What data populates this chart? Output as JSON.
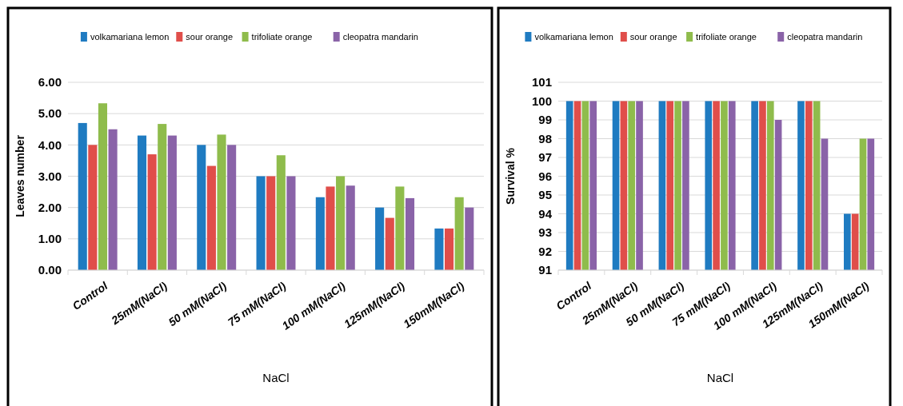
{
  "chart_data": [
    {
      "type": "bar",
      "xlabel": "NaCl",
      "ylabel": "Leaves number",
      "categories": [
        "Control",
        "25mM(NaCl)",
        "50 mM(NaCl)",
        "75 mM(NaCl)",
        "100 mM(NaCl)",
        "125mM(NaCl)",
        "150mM(NaCl)"
      ],
      "series": [
        {
          "name": "volkamariana lemon",
          "color": "#1f7bc1",
          "values": [
            4.7,
            4.3,
            4.0,
            3.0,
            2.33,
            2.0,
            1.33
          ]
        },
        {
          "name": "sour orange",
          "color": "#e04e4a",
          "values": [
            4.0,
            3.7,
            3.33,
            3.0,
            2.67,
            1.67,
            1.33
          ]
        },
        {
          "name": "trifoliate orange",
          "color": "#8fbc4c",
          "values": [
            5.33,
            4.67,
            4.33,
            3.67,
            3.0,
            2.67,
            2.33
          ]
        },
        {
          "name": "cleopatra mandarin",
          "color": "#8a63a8",
          "values": [
            4.5,
            4.3,
            4.0,
            3.0,
            2.7,
            2.3,
            2.0
          ]
        }
      ],
      "ylim": [
        0,
        6
      ],
      "yticks": [
        {
          "value": 0,
          "label": "0.00"
        },
        {
          "value": 1,
          "label": "1.00"
        },
        {
          "value": 2,
          "label": "2.00"
        },
        {
          "value": 3,
          "label": "3.00"
        },
        {
          "value": 4,
          "label": "4.00"
        },
        {
          "value": 5,
          "label": "5.00"
        },
        {
          "value": 6,
          "label": "6.00"
        }
      ],
      "grid": "y",
      "legend": "top"
    },
    {
      "type": "bar",
      "xlabel": "NaCl",
      "ylabel": "Survival %",
      "categories": [
        "Control",
        "25mM(NaCl)",
        "50 mM(NaCl)",
        "75 mM(NaCl)",
        "100 mM(NaCl)",
        "125mM(NaCl)",
        "150mM(NaCl)"
      ],
      "series": [
        {
          "name": "volkamariana lemon",
          "color": "#1f7bc1",
          "values": [
            100,
            100,
            100,
            100,
            100,
            100,
            94
          ]
        },
        {
          "name": "sour orange",
          "color": "#e04e4a",
          "values": [
            100,
            100,
            100,
            100,
            100,
            100,
            94
          ]
        },
        {
          "name": "trifoliate orange",
          "color": "#8fbc4c",
          "values": [
            100,
            100,
            100,
            100,
            100,
            100,
            98
          ]
        },
        {
          "name": "cleopatra mandarin",
          "color": "#8a63a8",
          "values": [
            100,
            100,
            100,
            100,
            99,
            98,
            98
          ]
        }
      ],
      "ylim": [
        91,
        101
      ],
      "yticks": [
        91,
        92,
        93,
        94,
        95,
        96,
        97,
        98,
        99,
        100,
        101
      ],
      "grid": "y",
      "legend": "top"
    }
  ]
}
